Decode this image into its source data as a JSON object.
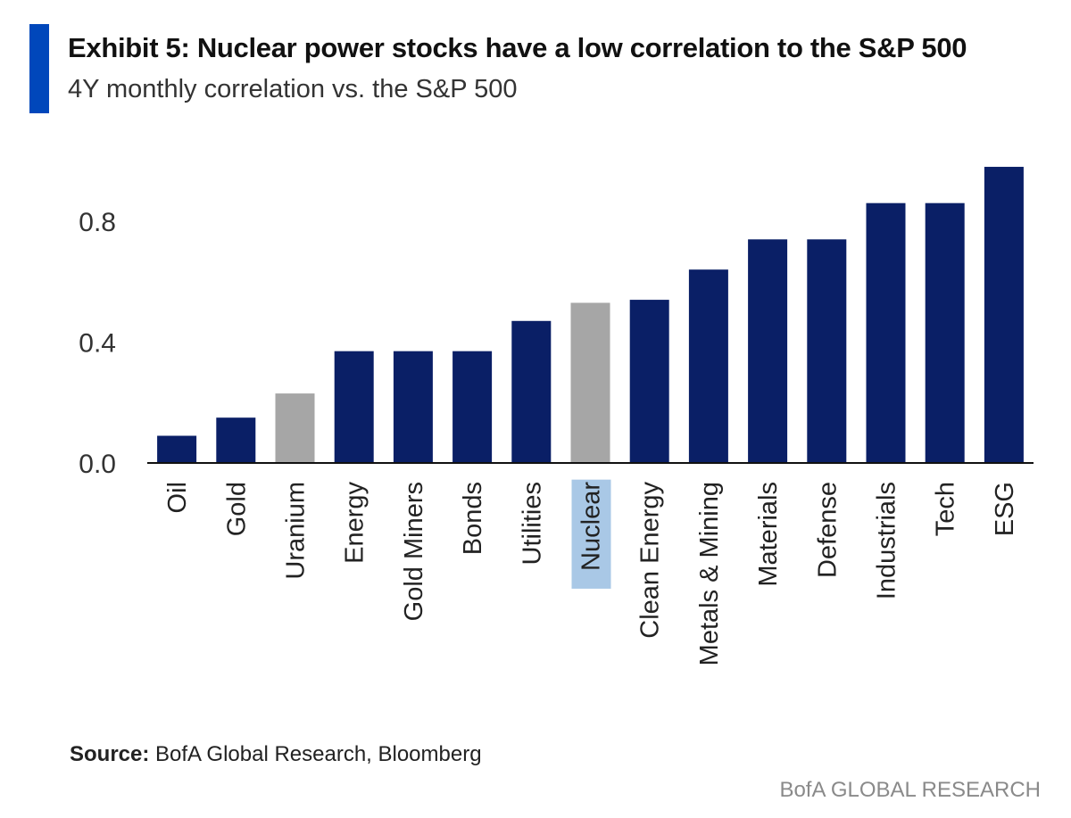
{
  "header": {
    "title": "Exhibit 5: Nuclear power stocks have a low correlation to the S&P 500",
    "subtitle": "4Y monthly correlation vs. the S&P 500"
  },
  "footer": {
    "source_label": "Source:",
    "source_text": " BofA Global Research, Bloomberg",
    "brand": "BofA GLOBAL RESEARCH"
  },
  "colors": {
    "accent": "#0047bb",
    "bar_default": "#0a1f66",
    "bar_highlight": "#a6a6a6",
    "label_highlight_bg": "#a9c8e6"
  },
  "chart_data": {
    "type": "bar",
    "title": "Exhibit 5: Nuclear power stocks have a low correlation to the S&P 500",
    "subtitle": "4Y monthly correlation vs. the S&P 500",
    "categories": [
      "Oil",
      "Gold",
      "Uranium",
      "Energy",
      "Gold Miners",
      "Bonds",
      "Utilities",
      "Nuclear",
      "Clean Energy",
      "Metals & Mining",
      "Materials",
      "Defense",
      "Industrials",
      "Tech",
      "ESG"
    ],
    "values": [
      0.09,
      0.15,
      0.23,
      0.37,
      0.37,
      0.37,
      0.47,
      0.53,
      0.54,
      0.64,
      0.74,
      0.74,
      0.86,
      0.86,
      0.98
    ],
    "highlighted": [
      "Uranium",
      "Nuclear"
    ],
    "label_highlighted": [
      "Nuclear"
    ],
    "yticks": [
      0.0,
      0.4,
      0.8
    ],
    "ytick_labels": [
      "0.0",
      "0.4",
      "0.8"
    ],
    "ylim": [
      0,
      1.0
    ],
    "xlabel": "",
    "ylabel": "",
    "grid": false,
    "legend": "none"
  }
}
